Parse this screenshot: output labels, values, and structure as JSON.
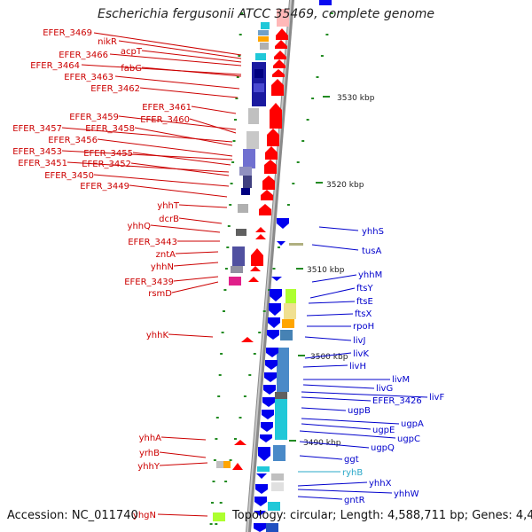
{
  "title": "Escherichia fergusonii ATCC 35469, complete genome",
  "footer": {
    "accession": "Accession: NC_011740",
    "topology": "Topology: circular; Length: 4,588,711 bp; Genes: 4,440"
  },
  "ticks": [
    "3530 kbp",
    "3520 kbp",
    "3510 kbp",
    "3500 kbp",
    "3490 kbp"
  ],
  "left_labels": [
    "EFER_3469",
    "nikR",
    "acpT",
    "EFER_3466",
    "EFER_3464",
    "fabG",
    "EFER_3463",
    "EFER_3462",
    "EFER_3461",
    "EFER_3459",
    "EFER_3460",
    "EFER_3457",
    "EFER_3458",
    "EFER_3456",
    "EFER_3453",
    "EFER_3455",
    "EFER_3451",
    "EFER_3452",
    "EFER_3450",
    "EFER_3449",
    "yhhT",
    "dcrB",
    "yhhQ",
    "EFER_3443",
    "zntA",
    "yhhN",
    "EFER_3439",
    "rsmD",
    "yhhK",
    "yhhA",
    "yrhB",
    "yhhY",
    "yhgN"
  ],
  "right_labels": [
    "yhhS",
    "tusA",
    "yhhM",
    "ftsY",
    "ftsE",
    "ftsX",
    "rpoH",
    "livJ",
    "livK",
    "livH",
    "livM",
    "livG",
    "livF",
    "EFER_3426",
    "ugpB",
    "ugpA",
    "ugpE",
    "ugpC",
    "ugpQ",
    "ggt",
    "ryhB",
    "yhhX",
    "yhhW",
    "gntR"
  ],
  "colors": {
    "forward": "#ff0000",
    "reverse": "#0000ff",
    "label_left": "#cc0000",
    "label_right": "#0000cc",
    "rna": "#2aa8c8",
    "backbone": "#888888",
    "dots": "#228b22"
  }
}
